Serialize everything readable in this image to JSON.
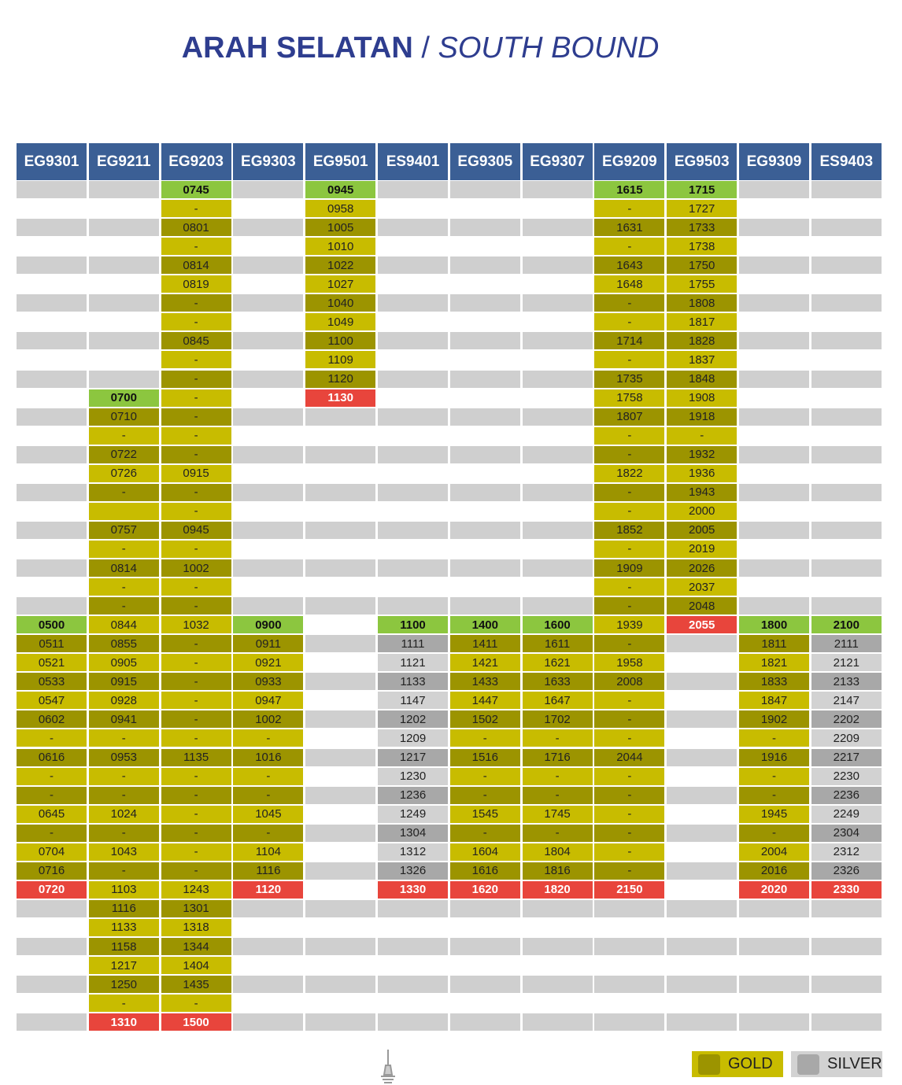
{
  "title": {
    "main": "ARAH SELATAN",
    "separator": "/",
    "sub": "SOUTH BOUND"
  },
  "columns": [
    {
      "code": "EG9301",
      "service": "gold",
      "cells": [
        null,
        null,
        null,
        null,
        null,
        null,
        null,
        null,
        null,
        null,
        null,
        null,
        null,
        null,
        null,
        null,
        null,
        null,
        null,
        null,
        null,
        null,
        null,
        "0500",
        "0511",
        "0521",
        "0533",
        "0547",
        "0602",
        "-",
        "0616",
        "-",
        "-",
        "0645",
        "-",
        "0704",
        "0716",
        "0720",
        null,
        null,
        null,
        null,
        null,
        null,
        null
      ]
    },
    {
      "code": "EG9211",
      "service": "gold",
      "cells": [
        null,
        null,
        null,
        null,
        null,
        null,
        null,
        null,
        null,
        null,
        null,
        "0700",
        "0710",
        "-",
        "0722",
        "0726",
        "-",
        null,
        "0757",
        "-",
        "0814",
        "-",
        "-",
        "0844",
        "0855",
        "0905",
        "0915",
        "0928",
        "0941",
        "-",
        "0953",
        "-",
        "-",
        "1024",
        "-",
        "1043",
        "-",
        "1103",
        "1116",
        "1133",
        "1158",
        "1217",
        "1250",
        "-",
        "1310"
      ]
    },
    {
      "code": "EG9203",
      "service": "gold",
      "cells": [
        "0745",
        "-",
        "0801",
        "-",
        "0814",
        "0819",
        "-",
        "-",
        "0845",
        "-",
        "-",
        "-",
        "-",
        "-",
        "-",
        "0915",
        "-",
        "-",
        "0945",
        "-",
        "1002",
        "-",
        "-",
        "1032",
        "-",
        "-",
        "-",
        "-",
        "-",
        "-",
        "1135",
        "-",
        "-",
        "-",
        "-",
        "-",
        "-",
        "1243",
        "1301",
        "1318",
        "1344",
        "1404",
        "1435",
        "-",
        "1500"
      ]
    },
    {
      "code": "EG9303",
      "service": "gold",
      "cells": [
        null,
        null,
        null,
        null,
        null,
        null,
        null,
        null,
        null,
        null,
        null,
        null,
        null,
        null,
        null,
        null,
        null,
        null,
        null,
        null,
        null,
        null,
        null,
        "0900",
        "0911",
        "0921",
        "0933",
        "0947",
        "1002",
        "-",
        "1016",
        "-",
        "-",
        "1045",
        "-",
        "1104",
        "1116",
        "1120",
        null,
        null,
        null,
        null,
        null,
        null,
        null
      ]
    },
    {
      "code": "EG9501",
      "service": "gold",
      "cells": [
        "0945",
        "0958",
        "1005",
        "1010",
        "1022",
        "1027",
        "1040",
        "1049",
        "1100",
        "1109",
        "1120",
        "1130",
        null,
        null,
        null,
        null,
        null,
        null,
        null,
        null,
        null,
        null,
        null,
        null,
        null,
        null,
        null,
        null,
        null,
        null,
        null,
        null,
        null,
        null,
        null,
        null,
        null,
        null,
        null,
        null,
        null,
        null,
        null,
        null,
        null
      ]
    },
    {
      "code": "ES9401",
      "service": "silver",
      "cells": [
        null,
        null,
        null,
        null,
        null,
        null,
        null,
        null,
        null,
        null,
        null,
        null,
        null,
        null,
        null,
        null,
        null,
        null,
        null,
        null,
        null,
        null,
        null,
        "1100",
        "1111",
        "1121",
        "1133",
        "1147",
        "1202",
        "1209",
        "1217",
        "1230",
        "1236",
        "1249",
        "1304",
        "1312",
        "1326",
        "1330",
        null,
        null,
        null,
        null,
        null,
        null,
        null
      ]
    },
    {
      "code": "EG9305",
      "service": "gold",
      "cells": [
        null,
        null,
        null,
        null,
        null,
        null,
        null,
        null,
        null,
        null,
        null,
        null,
        null,
        null,
        null,
        null,
        null,
        null,
        null,
        null,
        null,
        null,
        null,
        "1400",
        "1411",
        "1421",
        "1433",
        "1447",
        "1502",
        "-",
        "1516",
        "-",
        "-",
        "1545",
        "-",
        "1604",
        "1616",
        "1620",
        null,
        null,
        null,
        null,
        null,
        null,
        null
      ]
    },
    {
      "code": "EG9307",
      "service": "gold",
      "cells": [
        null,
        null,
        null,
        null,
        null,
        null,
        null,
        null,
        null,
        null,
        null,
        null,
        null,
        null,
        null,
        null,
        null,
        null,
        null,
        null,
        null,
        null,
        null,
        "1600",
        "1611",
        "1621",
        "1633",
        "1647",
        "1702",
        "-",
        "1716",
        "-",
        "-",
        "1745",
        "-",
        "1804",
        "1816",
        "1820",
        null,
        null,
        null,
        null,
        null,
        null,
        null
      ]
    },
    {
      "code": "EG9209",
      "service": "gold",
      "cells": [
        "1615",
        "-",
        "1631",
        "-",
        "1643",
        "1648",
        "-",
        "-",
        "1714",
        "-",
        "1735",
        "1758",
        "1807",
        "-",
        "-",
        "1822",
        "-",
        "-",
        "1852",
        "-",
        "1909",
        "-",
        "-",
        "1939",
        "-",
        "1958",
        "2008",
        "-",
        "-",
        "-",
        "2044",
        "-",
        "-",
        "-",
        "-",
        "-",
        "-",
        "2150",
        null,
        null,
        null,
        null,
        null,
        null,
        null
      ]
    },
    {
      "code": "EG9503",
      "service": "gold",
      "cells": [
        "1715",
        "1727",
        "1733",
        "1738",
        "1750",
        "1755",
        "1808",
        "1817",
        "1828",
        "1837",
        "1848",
        "1908",
        "1918",
        "-",
        "1932",
        "1936",
        "1943",
        "2000",
        "2005",
        "2019",
        "2026",
        "2037",
        "2048",
        "2055",
        null,
        null,
        null,
        null,
        null,
        null,
        null,
        null,
        null,
        null,
        null,
        null,
        null,
        null,
        null,
        null,
        null,
        null,
        null,
        null,
        null
      ]
    },
    {
      "code": "EG9309",
      "service": "gold",
      "cells": [
        null,
        null,
        null,
        null,
        null,
        null,
        null,
        null,
        null,
        null,
        null,
        null,
        null,
        null,
        null,
        null,
        null,
        null,
        null,
        null,
        null,
        null,
        null,
        "1800",
        "1811",
        "1821",
        "1833",
        "1847",
        "1902",
        "-",
        "1916",
        "-",
        "-",
        "1945",
        "-",
        "2004",
        "2016",
        "2020",
        null,
        null,
        null,
        null,
        null,
        null,
        null
      ]
    },
    {
      "code": "ES9403",
      "service": "silver",
      "cells": [
        null,
        null,
        null,
        null,
        null,
        null,
        null,
        null,
        null,
        null,
        null,
        null,
        null,
        null,
        null,
        null,
        null,
        null,
        null,
        null,
        null,
        null,
        null,
        "2100",
        "2111",
        "2121",
        "2133",
        "2147",
        "2202",
        "2209",
        "2217",
        "2230",
        "2236",
        "2249",
        "2304",
        "2312",
        "2326",
        "2330",
        null,
        null,
        null,
        null,
        null,
        null,
        null
      ]
    }
  ],
  "legend": [
    {
      "label": "GOLD",
      "service": "gold"
    },
    {
      "label": "SILVER",
      "service": "silver"
    }
  ]
}
